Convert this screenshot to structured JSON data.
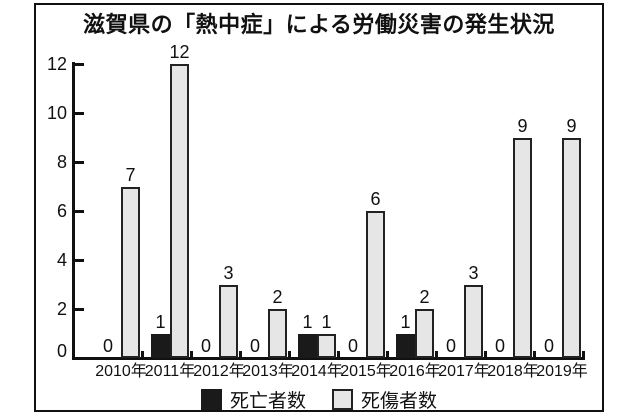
{
  "title": "滋賀県の「熱中症」による労働災害の発生状況",
  "legend": {
    "items": [
      {
        "label": "死亡者数",
        "color": "#1a1a1a"
      },
      {
        "label": "死傷者数",
        "color": "#e6e6e6"
      }
    ]
  },
  "colors": {
    "death_bar": "#1a1a1a",
    "injury_bar_fill": "#e6e6e6",
    "bar_border": "#222222",
    "axis": "#111111"
  },
  "chart_data": {
    "type": "bar",
    "title": "滋賀県の「熱中症」による労働災害の発生状況",
    "categories": [
      "2010年",
      "2011年",
      "2012年",
      "2013年",
      "2014年",
      "2015年",
      "2016年",
      "2017年",
      "2018年",
      "2019年"
    ],
    "series": [
      {
        "name": "死亡者数",
        "color": "#1a1a1a",
        "values": [
          0,
          1,
          0,
          0,
          1,
          0,
          1,
          0,
          0,
          0
        ]
      },
      {
        "name": "死傷者数",
        "color": "#e6e6e6",
        "values": [
          7,
          12,
          3,
          2,
          1,
          6,
          2,
          3,
          9,
          9
        ]
      }
    ],
    "xlabel": "",
    "ylabel": "",
    "ylim": [
      0,
      12
    ],
    "yticks": [
      0,
      2,
      4,
      6,
      8,
      10,
      12
    ],
    "grid": false,
    "legend_position": "bottom",
    "bar_value_labels": true,
    "zero_values_shown_as_text": true
  }
}
